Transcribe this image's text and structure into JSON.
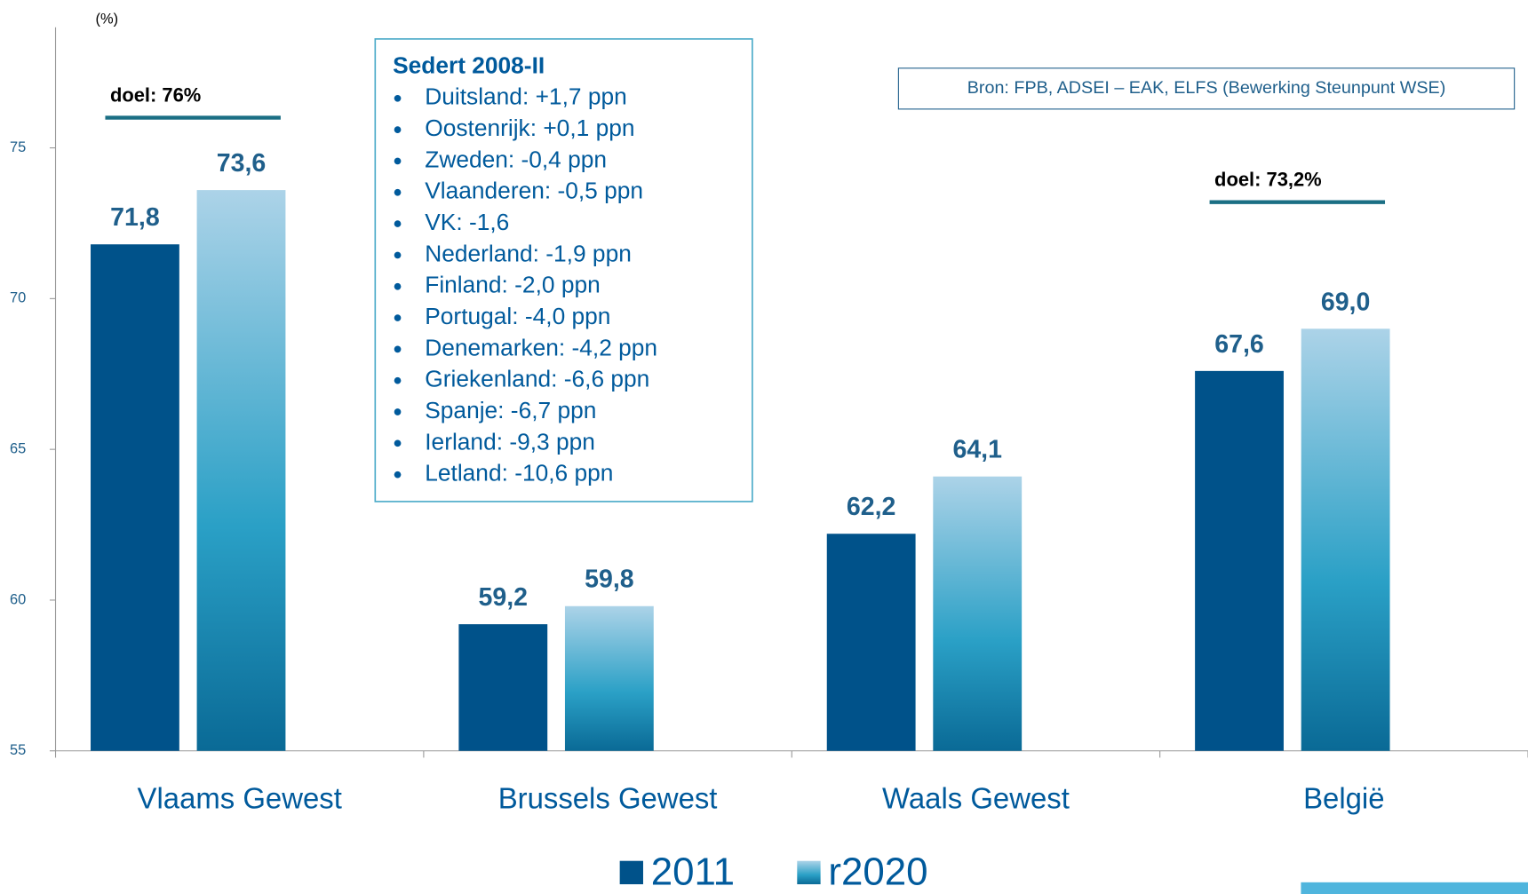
{
  "chart_data": {
    "type": "bar",
    "y_label": "(%)",
    "categories": [
      "Vlaams Gewest",
      "Brussels Gewest",
      "Waals Gewest",
      "België"
    ],
    "series": [
      {
        "name": "2011",
        "color": "#00528a",
        "values": [
          71.8,
          59.2,
          62.2,
          67.6
        ],
        "value_labels": [
          "71,8",
          "59,2",
          "62,2",
          "67,6"
        ]
      },
      {
        "name": "r2020",
        "color": "#2aa0c6",
        "values": [
          73.6,
          59.8,
          64.1,
          69.0
        ],
        "value_labels": [
          "73,6",
          "59,8",
          "64,1",
          "69,0"
        ]
      }
    ],
    "ylim": [
      55,
      79
    ],
    "yticks": [
      55,
      60,
      65,
      70,
      75
    ],
    "annotations": [
      {
        "text": "doel: 76%",
        "value": 76,
        "category": 0
      },
      {
        "text": "doel: 73,2%",
        "value": 73.2,
        "category": 3
      }
    ],
    "note": {
      "title": "Sedert 2008-II",
      "items": [
        "Duitsland: +1,7 ppn",
        "Oostenrijk: +0,1 ppn",
        "Zweden: -0,4 ppn",
        "Vlaanderen: -0,5 ppn",
        "VK: -1,6",
        "Nederland: -1,9 ppn",
        "Finland: -2,0 ppn",
        "Portugal: -4,0 ppn",
        "Denemarken: -4,2 ppn",
        "Griekenland: -6,6 ppn",
        "Spanje: -6,7 ppn",
        "Ierland: -9,3 ppn",
        "Letland: -10,6 ppn"
      ]
    },
    "source": "Bron: FPB, ADSEI – EAK, ELFS (Bewerking Steunpunt WSE)"
  }
}
